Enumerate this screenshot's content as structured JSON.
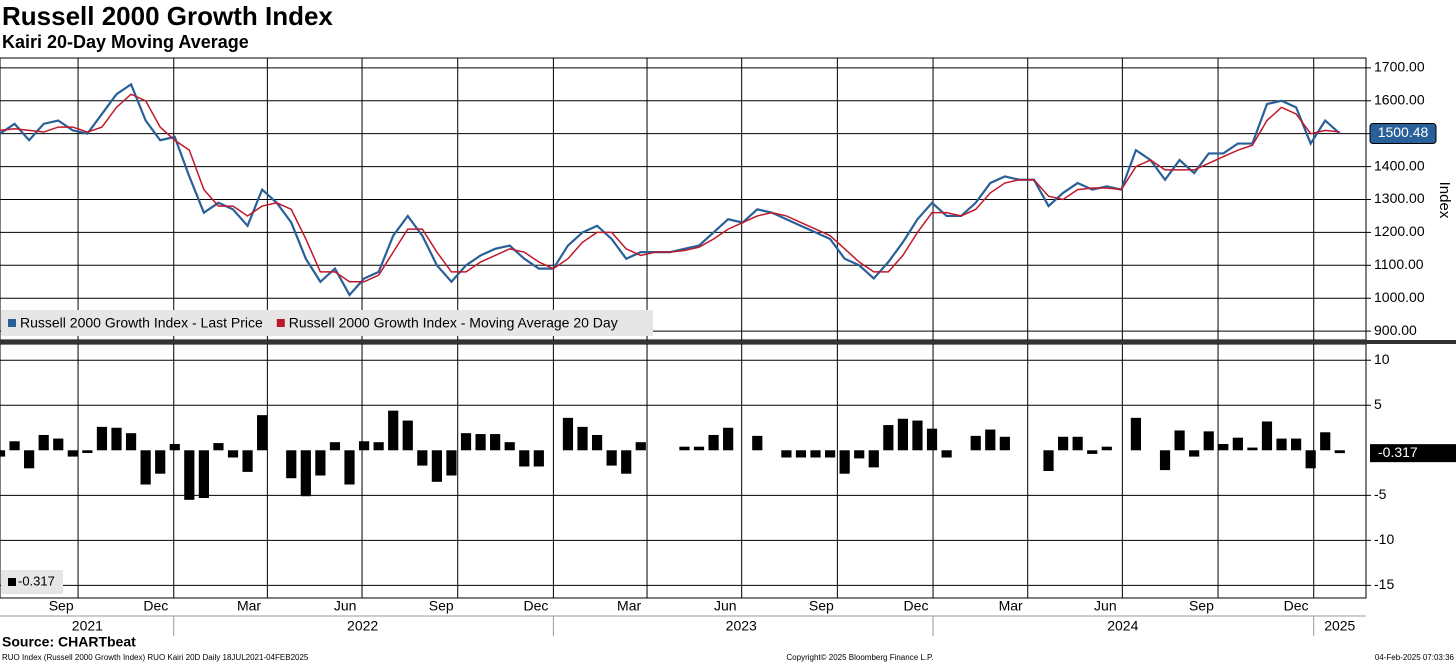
{
  "title": "Russell 2000 Growth Index",
  "subtitle": "Kairi 20-Day Moving Average",
  "x_axis": {
    "xlim": [
      0,
      93.8
    ],
    "xticks": [
      {
        "value": 4.2,
        "label": "Sep"
      },
      {
        "value": 10.7,
        "label": "Dec"
      },
      {
        "value": 17.1,
        "label": "Mar"
      },
      {
        "value": 23.7,
        "label": "Jun"
      },
      {
        "value": 30.3,
        "label": "Sep"
      },
      {
        "value": 36.8,
        "label": "Dec"
      },
      {
        "value": 43.2,
        "label": "Mar"
      },
      {
        "value": 49.8,
        "label": "Jun"
      },
      {
        "value": 56.4,
        "label": "Sep"
      },
      {
        "value": 62.9,
        "label": "Dec"
      },
      {
        "value": 69.4,
        "label": "Mar"
      },
      {
        "value": 75.9,
        "label": "Jun"
      },
      {
        "value": 82.5,
        "label": "Sep"
      },
      {
        "value": 89.0,
        "label": "Dec"
      }
    ],
    "year_ticks": [
      {
        "value": 6.0,
        "label": "2021"
      },
      {
        "value": 24.9,
        "label": "2022"
      },
      {
        "value": 50.9,
        "label": "2023"
      },
      {
        "value": 77.1,
        "label": "2024"
      },
      {
        "value": 92.0,
        "label": "2025"
      }
    ],
    "xgrid": [
      5.36,
      11.93,
      18.36,
      24.86,
      31.43,
      38.0,
      44.43,
      50.93,
      57.5,
      64.07,
      70.57,
      77.07,
      83.64,
      90.21
    ],
    "year_breaks": [
      11.93,
      38.0,
      64.07,
      90.21
    ]
  },
  "chart_data": [
    {
      "type": "line",
      "ylabel": "Index",
      "ylim": [
        873,
        1730
      ],
      "grid": true,
      "legend": "lower left",
      "yticks": [
        {
          "value": 900,
          "label": "900.00"
        },
        {
          "value": 1000,
          "label": "1000.00"
        },
        {
          "value": 1100,
          "label": "1100.00"
        },
        {
          "value": 1200,
          "label": "1200.00"
        },
        {
          "value": 1300,
          "label": "1300.00"
        },
        {
          "value": 1400,
          "label": "1400.00"
        },
        {
          "value": 1500,
          "label": "1500.00"
        },
        {
          "value": 1600,
          "label": "1600.00"
        },
        {
          "value": 1700,
          "label": "1700.00"
        }
      ],
      "series": [
        {
          "name": "Russell 2000 Growth Index - Last Price",
          "color": "#2a6099",
          "values": [
            1500,
            1530,
            1480,
            1530,
            1540,
            1510,
            1500,
            1560,
            1620,
            1650,
            1540,
            1480,
            1490,
            1370,
            1260,
            1290,
            1270,
            1220,
            1330,
            1290,
            1230,
            1120,
            1050,
            1090,
            1010,
            1060,
            1080,
            1190,
            1250,
            1190,
            1100,
            1050,
            1100,
            1130,
            1150,
            1160,
            1120,
            1090,
            1090,
            1160,
            1200,
            1220,
            1180,
            1120,
            1140,
            1140,
            1140,
            1150,
            1160,
            1200,
            1240,
            1230,
            1270,
            1260,
            1240,
            1220,
            1200,
            1180,
            1120,
            1100,
            1060,
            1110,
            1170,
            1240,
            1290,
            1250,
            1250,
            1290,
            1350,
            1370,
            1360,
            1360,
            1280,
            1320,
            1350,
            1330,
            1340,
            1330,
            1450,
            1420,
            1360,
            1420,
            1380,
            1440,
            1440,
            1470,
            1470,
            1590,
            1600,
            1580,
            1470,
            1540,
            1500.48
          ]
        },
        {
          "name": "Russell 2000 Growth Index - Moving Average 20 Day",
          "color": "#c0182a",
          "values": [
            1510,
            1515,
            1510,
            1505,
            1520,
            1520,
            1505,
            1520,
            1580,
            1620,
            1600,
            1520,
            1480,
            1450,
            1330,
            1280,
            1280,
            1250,
            1280,
            1290,
            1270,
            1180,
            1080,
            1080,
            1050,
            1050,
            1070,
            1140,
            1210,
            1210,
            1140,
            1080,
            1080,
            1110,
            1130,
            1150,
            1140,
            1110,
            1090,
            1120,
            1170,
            1200,
            1200,
            1150,
            1130,
            1140,
            1140,
            1145,
            1155,
            1180,
            1210,
            1230,
            1250,
            1260,
            1250,
            1230,
            1210,
            1190,
            1150,
            1110,
            1080,
            1080,
            1130,
            1200,
            1260,
            1260,
            1250,
            1270,
            1320,
            1350,
            1360,
            1360,
            1310,
            1300,
            1330,
            1335,
            1335,
            1330,
            1400,
            1420,
            1390,
            1390,
            1390,
            1410,
            1430,
            1450,
            1465,
            1540,
            1580,
            1560,
            1500,
            1510,
            1505.25
          ]
        }
      ]
    },
    {
      "type": "bar",
      "ylim": [
        -16.4,
        11.8
      ],
      "grid": true,
      "legend": "lower left",
      "yticks": [
        -15,
        -10,
        -5,
        5,
        10
      ],
      "series": [
        {
          "color": "#000000",
          "values": [
            -0.7,
            1.0,
            -2.0,
            1.7,
            1.3,
            -0.7,
            -0.3,
            2.6,
            2.5,
            1.9,
            -3.8,
            -2.6,
            0.7,
            -5.5,
            -5.3,
            0.8,
            -0.8,
            -2.4,
            3.9,
            0.0,
            -3.1,
            -5.1,
            -2.8,
            0.9,
            -3.8,
            1.0,
            0.9,
            4.4,
            3.3,
            -1.7,
            -3.5,
            -2.8,
            1.9,
            1.8,
            1.8,
            0.9,
            -1.8,
            -1.8,
            0.0,
            3.6,
            2.6,
            1.7,
            -1.7,
            -2.6,
            0.9,
            0.0,
            0.0,
            0.4,
            0.4,
            1.7,
            2.5,
            0.0,
            1.6,
            0.0,
            -0.8,
            -0.8,
            -0.8,
            -0.8,
            -2.6,
            -0.9,
            -1.9,
            2.8,
            3.5,
            3.3,
            2.4,
            -0.8,
            0.0,
            1.6,
            2.3,
            1.5,
            0.0,
            0.0,
            -2.3,
            1.5,
            1.5,
            -0.4,
            0.4,
            0.0,
            3.6,
            0.0,
            -2.2,
            2.2,
            -0.7,
            2.1,
            0.7,
            1.4,
            0.3,
            3.2,
            1.3,
            1.3,
            -2.0,
            2.0,
            -0.317
          ]
        }
      ]
    }
  ],
  "footer": {
    "source": "Source: CHARTbeat",
    "footnote": "RUO Index (Russell 2000 Growth Index) RUO Kairi 20D  Daily 18JUL2021-04FEB2025",
    "copyright": "Copyright© 2025 Bloomberg Finance L.P.",
    "timestamp": "04-Feb-2025 07:03:36"
  }
}
